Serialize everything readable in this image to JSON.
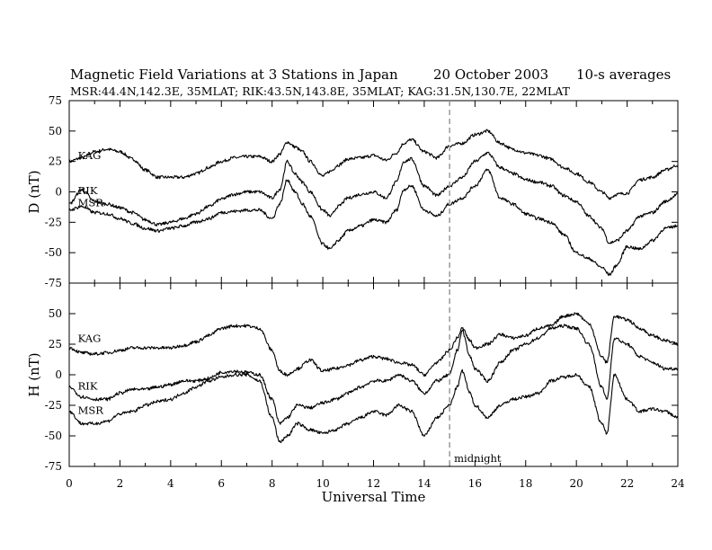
{
  "header": {
    "title": "Magnetic Field Variations at 3 Stations in Japan",
    "date": "20 October 2003",
    "averaging": "10-s averages",
    "subtitle": "MSR:44.4N,142.3E, 35MLAT;  RIK:43.5N,143.8E, 35MLAT;  KAG:31.5N,130.7E, 22MLAT"
  },
  "colors": {
    "line": "#000000",
    "midnight_marker": "#9a9a9a",
    "background": "#ffffff"
  },
  "chart_data": [
    {
      "type": "line",
      "panel": "top",
      "ylabel": "D (nT)",
      "xlim": [
        0,
        24
      ],
      "ylim": [
        -75,
        75
      ],
      "yticks": [
        75,
        50,
        25,
        0,
        -25,
        -50,
        -75
      ],
      "grid": false,
      "series": [
        {
          "name": "KAG",
          "label_x": 0.2,
          "label_y": 27,
          "x": [
            0,
            0.5,
            1,
            1.5,
            2,
            2.5,
            3,
            3.5,
            4,
            4.5,
            5,
            5.5,
            6,
            6.5,
            7,
            7.5,
            8,
            8.3,
            8.6,
            8.9,
            9.2,
            9.5,
            10,
            10.3,
            10.6,
            11,
            11.5,
            12,
            12.5,
            12.9,
            13.2,
            13.5,
            14,
            14.5,
            15,
            15.5,
            16,
            16.5,
            17,
            17.5,
            18,
            18.5,
            19,
            19.5,
            20,
            20.5,
            21,
            21.3,
            21.6,
            22,
            22.5,
            23,
            23.5,
            24
          ],
          "y": [
            25,
            28,
            33,
            35,
            33,
            27,
            18,
            12,
            12,
            12,
            15,
            20,
            25,
            28,
            29,
            29,
            25,
            31,
            41,
            37,
            33,
            25,
            13,
            17,
            22,
            27,
            28,
            30,
            26,
            32,
            40,
            43,
            33,
            28,
            38,
            40,
            47,
            50,
            40,
            35,
            32,
            30,
            27,
            20,
            15,
            8,
            0,
            -5,
            -2,
            -1,
            10,
            12,
            18,
            22
          ]
        },
        {
          "name": "RIK",
          "label_x": 0.2,
          "label_y": -2,
          "x": [
            0,
            0.5,
            1,
            1.5,
            2,
            2.5,
            3,
            3.5,
            4,
            4.5,
            5,
            5.5,
            6,
            6.5,
            7,
            7.5,
            8,
            8.3,
            8.6,
            8.9,
            9.2,
            9.5,
            10,
            10.3,
            10.6,
            11,
            11.5,
            12,
            12.5,
            12.9,
            13.2,
            13.5,
            14,
            14.5,
            15,
            15.5,
            16,
            16.5,
            17,
            17.5,
            18,
            18.5,
            19,
            19.5,
            20,
            20.5,
            21,
            21.3,
            21.6,
            22,
            22.5,
            23,
            23.5,
            24
          ],
          "y": [
            -10,
            2,
            -8,
            -10,
            -13,
            -17,
            -23,
            -27,
            -25,
            -22,
            -18,
            -12,
            -6,
            -2,
            0,
            0,
            -5,
            2,
            25,
            15,
            8,
            0,
            -15,
            -20,
            -12,
            -5,
            -2,
            0,
            -5,
            8,
            25,
            27,
            5,
            -3,
            5,
            12,
            25,
            32,
            20,
            15,
            10,
            8,
            5,
            -3,
            -8,
            -20,
            -30,
            -42,
            -40,
            -32,
            -20,
            -17,
            -8,
            -2
          ]
        },
        {
          "name": "MSR",
          "label_x": 0.2,
          "label_y": -12,
          "x": [
            0,
            0.5,
            1,
            1.5,
            2,
            2.5,
            3,
            3.5,
            4,
            4.5,
            5,
            5.5,
            6,
            6.5,
            7,
            7.5,
            8,
            8.3,
            8.6,
            8.9,
            9.2,
            9.5,
            10,
            10.3,
            10.6,
            11,
            11.5,
            12,
            12.5,
            12.9,
            13.2,
            13.5,
            14,
            14.5,
            15,
            15.5,
            16,
            16.5,
            17,
            17.5,
            18,
            18.5,
            19,
            19.5,
            20,
            20.5,
            21,
            21.3,
            21.6,
            22,
            22.5,
            23,
            23.5,
            24
          ],
          "y": [
            -15,
            -12,
            -17,
            -18,
            -22,
            -26,
            -30,
            -32,
            -30,
            -28,
            -25,
            -22,
            -17,
            -16,
            -15,
            -15,
            -22,
            -10,
            10,
            0,
            -10,
            -20,
            -43,
            -47,
            -40,
            -32,
            -28,
            -23,
            -25,
            -15,
            2,
            5,
            -15,
            -20,
            -10,
            -5,
            5,
            18,
            -5,
            -10,
            -18,
            -22,
            -25,
            -35,
            -50,
            -55,
            -62,
            -68,
            -60,
            -45,
            -47,
            -40,
            -30,
            -28
          ]
        }
      ]
    },
    {
      "type": "line",
      "panel": "bottom",
      "ylabel": "H (nT)",
      "xlabel": "Universal Time",
      "xlim": [
        0,
        24
      ],
      "ylim": [
        -75,
        75
      ],
      "yticks": [
        50,
        25,
        0,
        -25,
        -50,
        -75
      ],
      "xticks": [
        0,
        2,
        4,
        6,
        8,
        10,
        12,
        14,
        16,
        18,
        20,
        22,
        24
      ],
      "grid": false,
      "series": [
        {
          "name": "KAG",
          "label_x": 0.2,
          "label_y": 27,
          "x": [
            0,
            0.5,
            1,
            1.5,
            2,
            2.5,
            3,
            3.5,
            4,
            4.5,
            5,
            5.5,
            6,
            6.5,
            7,
            7.5,
            8,
            8.3,
            8.6,
            9,
            9.5,
            10,
            10.5,
            11,
            11.5,
            12,
            12.5,
            13,
            13.5,
            14,
            14.5,
            15,
            15.3,
            15.5,
            15.8,
            16,
            16.5,
            17,
            17.5,
            18,
            18.5,
            19,
            19.5,
            20,
            20.5,
            21,
            21.2,
            21.5,
            22,
            22.5,
            23,
            23.5,
            24
          ],
          "y": [
            22,
            18,
            17,
            18,
            20,
            22,
            22,
            22,
            22,
            24,
            27,
            32,
            38,
            40,
            40,
            38,
            20,
            3,
            0,
            5,
            12,
            3,
            5,
            8,
            12,
            15,
            13,
            10,
            8,
            0,
            10,
            20,
            30,
            38,
            28,
            22,
            25,
            33,
            30,
            32,
            38,
            40,
            48,
            50,
            42,
            15,
            10,
            48,
            45,
            38,
            32,
            28,
            25
          ]
        },
        {
          "name": "RIK",
          "label_x": 0.2,
          "label_y": -12,
          "x": [
            0,
            0.5,
            1,
            1.5,
            2,
            2.5,
            3,
            3.5,
            4,
            4.5,
            5,
            5.5,
            6,
            6.5,
            7,
            7.5,
            8,
            8.3,
            8.6,
            9,
            9.5,
            10,
            10.5,
            11,
            11.5,
            12,
            12.5,
            13,
            13.5,
            14,
            14.5,
            15,
            15.3,
            15.5,
            15.8,
            16,
            16.5,
            17,
            17.5,
            18,
            18.5,
            19,
            19.5,
            20,
            20.5,
            21,
            21.2,
            21.5,
            22,
            22.5,
            23,
            23.5,
            24
          ],
          "y": [
            -10,
            -18,
            -20,
            -20,
            -15,
            -12,
            -12,
            -10,
            -8,
            -5,
            -5,
            -3,
            2,
            3,
            2,
            0,
            -20,
            -40,
            -35,
            -25,
            -27,
            -23,
            -20,
            -15,
            -10,
            -5,
            -5,
            0,
            -5,
            -15,
            -5,
            0,
            20,
            36,
            15,
            5,
            -5,
            10,
            20,
            25,
            30,
            38,
            40,
            38,
            25,
            -10,
            -20,
            30,
            25,
            15,
            10,
            5,
            5
          ]
        },
        {
          "name": "MSR",
          "label_x": 0.2,
          "label_y": -32,
          "x": [
            0,
            0.5,
            1,
            1.5,
            2,
            2.5,
            3,
            3.5,
            4,
            4.5,
            5,
            5.5,
            6,
            6.5,
            7,
            7.5,
            8,
            8.3,
            8.6,
            9,
            9.5,
            10,
            10.5,
            11,
            11.5,
            12,
            12.5,
            13,
            13.5,
            14,
            14.5,
            15,
            15.3,
            15.5,
            15.8,
            16,
            16.5,
            17,
            17.5,
            18,
            18.5,
            19,
            19.5,
            20,
            20.5,
            21,
            21.2,
            21.5,
            22,
            22.5,
            23,
            23.5,
            24
          ],
          "y": [
            -30,
            -40,
            -40,
            -38,
            -32,
            -30,
            -25,
            -22,
            -20,
            -15,
            -10,
            -5,
            -2,
            0,
            0,
            -5,
            -35,
            -55,
            -50,
            -40,
            -45,
            -48,
            -45,
            -40,
            -35,
            -30,
            -33,
            -25,
            -30,
            -50,
            -35,
            -25,
            -10,
            3,
            -15,
            -25,
            -35,
            -25,
            -20,
            -18,
            -15,
            -5,
            -2,
            0,
            -10,
            -40,
            -48,
            0,
            -20,
            -30,
            -28,
            -30,
            -35
          ]
        }
      ]
    }
  ],
  "midnight_line": {
    "x": 15,
    "label": "midnight"
  }
}
